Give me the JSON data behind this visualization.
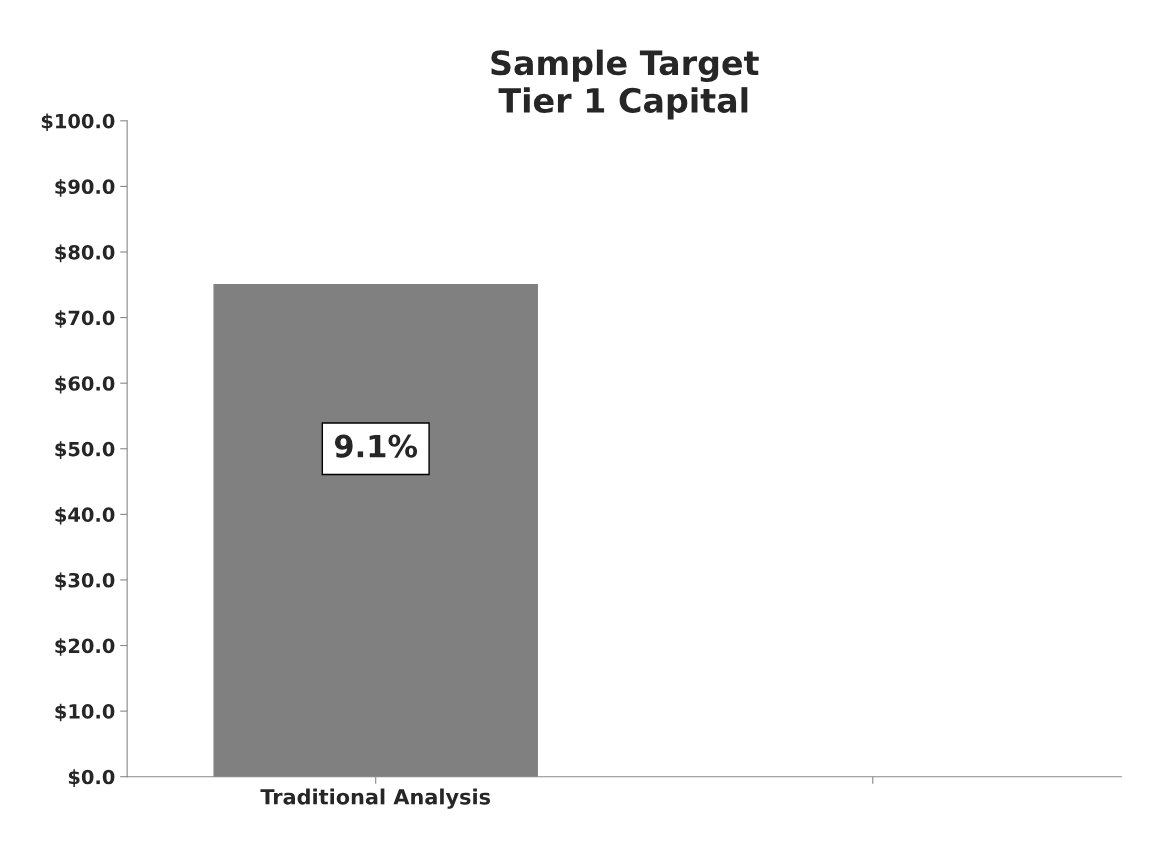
{
  "chart_data": {
    "type": "bar",
    "title": "Sample Target\nTier 1 Capital",
    "categories": [
      "Traditional Analysis",
      null
    ],
    "values": [
      75,
      null
    ],
    "annotations": [
      "9.1%"
    ],
    "color": "#808080",
    "ylim": [
      0,
      100
    ],
    "yticks": [
      {
        "value": 0,
        "label": "$0.0"
      },
      {
        "value": 10,
        "label": "$10.0"
      },
      {
        "value": 20,
        "label": "$20.0"
      },
      {
        "value": 30,
        "label": "$30.0"
      },
      {
        "value": 40,
        "label": "$40.0"
      },
      {
        "value": 50,
        "label": "$50.0"
      },
      {
        "value": 60,
        "label": "$60.0"
      },
      {
        "value": 70,
        "label": "$70.0"
      },
      {
        "value": 80,
        "label": "$80.0"
      },
      {
        "value": 90,
        "label": "$90.0"
      },
      {
        "value": 100,
        "label": "$100.0"
      }
    ],
    "grid": false,
    "legend": false
  }
}
